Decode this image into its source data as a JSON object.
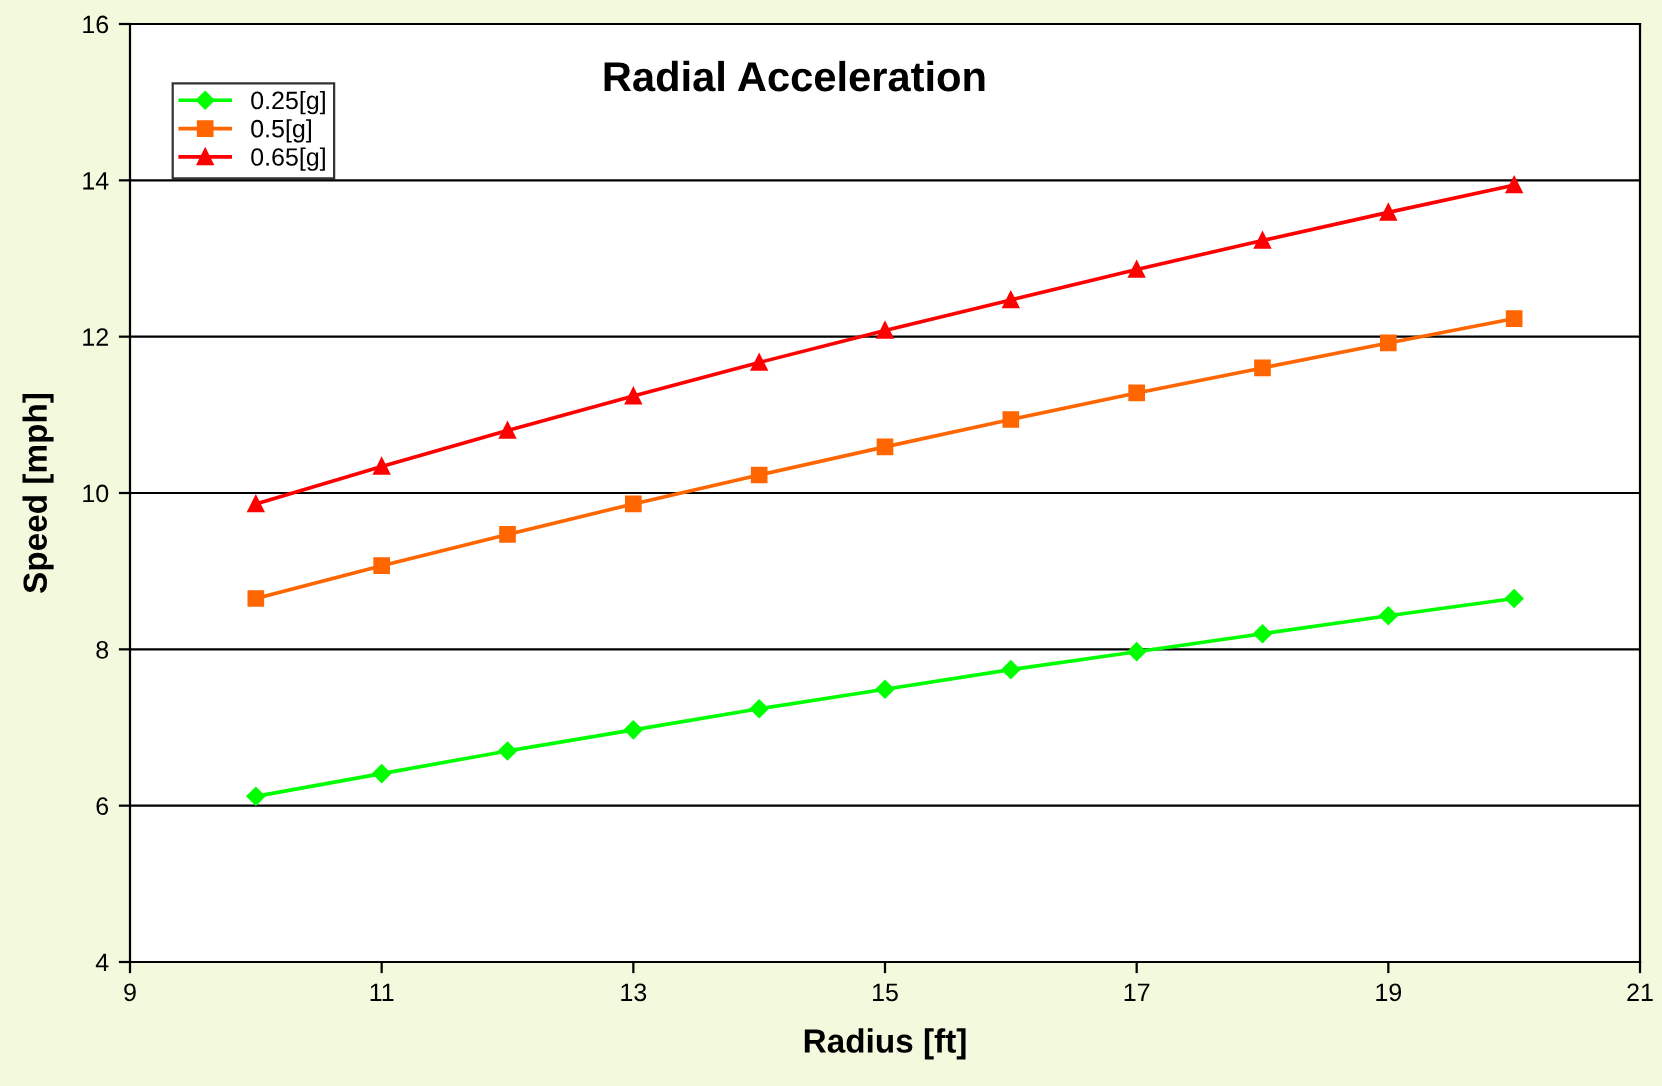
{
  "chart_data": {
    "type": "line",
    "title": "Radial Acceleration",
    "xlabel": "Radius [ft]",
    "ylabel": "Speed [mph]",
    "x": [
      10,
      11,
      12,
      13,
      14,
      15,
      16,
      17,
      18,
      19,
      20
    ],
    "series": [
      {
        "name": "0.25[g]",
        "color": "#00ff00",
        "marker": "diamond",
        "values": [
          6.12,
          6.41,
          6.7,
          6.97,
          7.24,
          7.49,
          7.74,
          7.97,
          8.2,
          8.43,
          8.65
        ]
      },
      {
        "name": "0.5[g]",
        "color": "#ff6600",
        "marker": "square",
        "values": [
          8.65,
          9.07,
          9.47,
          9.86,
          10.23,
          10.59,
          10.94,
          11.28,
          11.6,
          11.92,
          12.23
        ]
      },
      {
        "name": "0.65[g]",
        "color": "#ff0000",
        "marker": "triangle",
        "values": [
          9.86,
          10.34,
          10.8,
          11.24,
          11.67,
          12.08,
          12.47,
          12.86,
          13.23,
          13.59,
          13.94
        ]
      }
    ],
    "xlim": [
      9,
      21
    ],
    "xticks": [
      9,
      11,
      13,
      15,
      17,
      19,
      21
    ],
    "ylim": [
      4,
      16
    ],
    "yticks": [
      4,
      6,
      8,
      10,
      12,
      14,
      16
    ],
    "grid": "y",
    "legend": "top left",
    "line_style": "solid"
  }
}
